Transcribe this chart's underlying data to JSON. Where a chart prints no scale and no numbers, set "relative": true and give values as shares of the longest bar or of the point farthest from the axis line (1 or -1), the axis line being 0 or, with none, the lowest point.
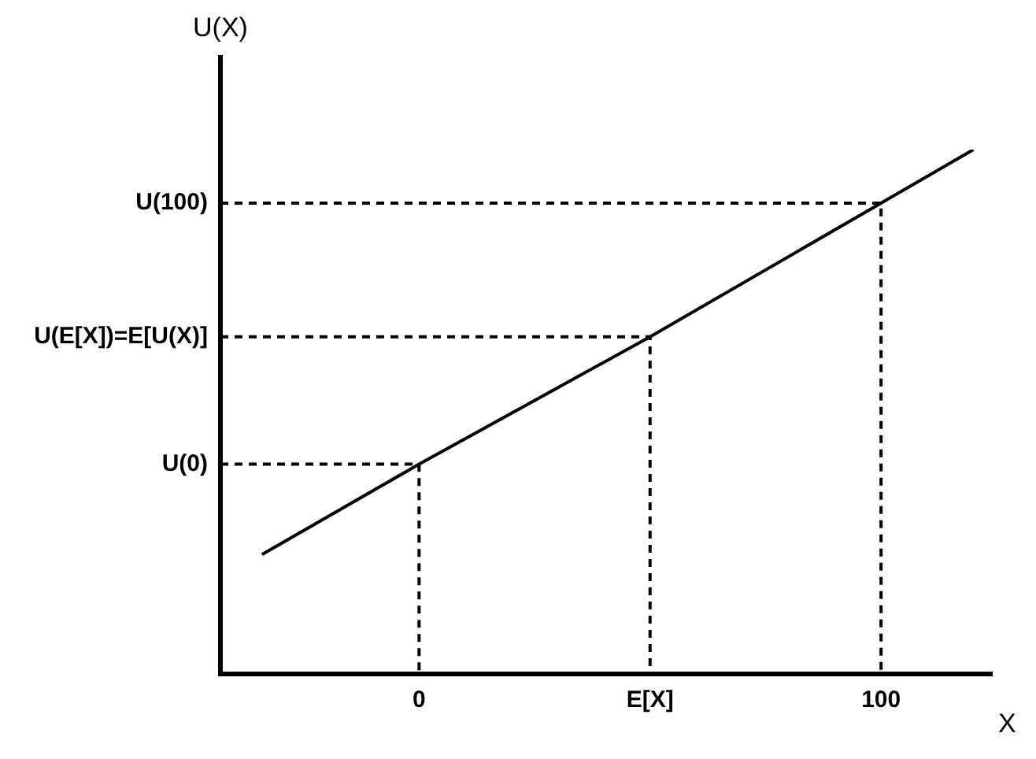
{
  "chart_data": {
    "type": "line",
    "xlabel": "X",
    "ylabel": "U(X)",
    "relative": true,
    "xlim": [
      -43,
      124
    ],
    "xticks": [
      {
        "value": 0,
        "label": "0"
      },
      {
        "value": 50,
        "label": "E[X]"
      },
      {
        "value": 100,
        "label": "100"
      }
    ],
    "grid": false,
    "legend": false,
    "marker": "none",
    "series": [
      {
        "color": "#000000",
        "x": [
          -34,
          0,
          50,
          100,
          120
        ],
        "values": [
          0.228,
          0.4,
          0.643,
          0.898,
          1
        ],
        "line_style": "solid"
      },
      {
        "name": "U(0)",
        "color": "#000000",
        "x": [
          -43,
          0,
          0
        ],
        "values": [
          0.4,
          0.4,
          0
        ],
        "line_style": "dashed"
      },
      {
        "name": "U(E[X])=E[U(X)]",
        "color": "#000000",
        "x": [
          -43,
          50,
          50
        ],
        "values": [
          0.643,
          0.643,
          0
        ],
        "line_style": "dashed"
      },
      {
        "name": "U(100)",
        "color": "#000000",
        "x": [
          -43,
          100,
          100
        ],
        "values": [
          0.898,
          0.898,
          0
        ],
        "line_style": "dashed"
      }
    ]
  }
}
